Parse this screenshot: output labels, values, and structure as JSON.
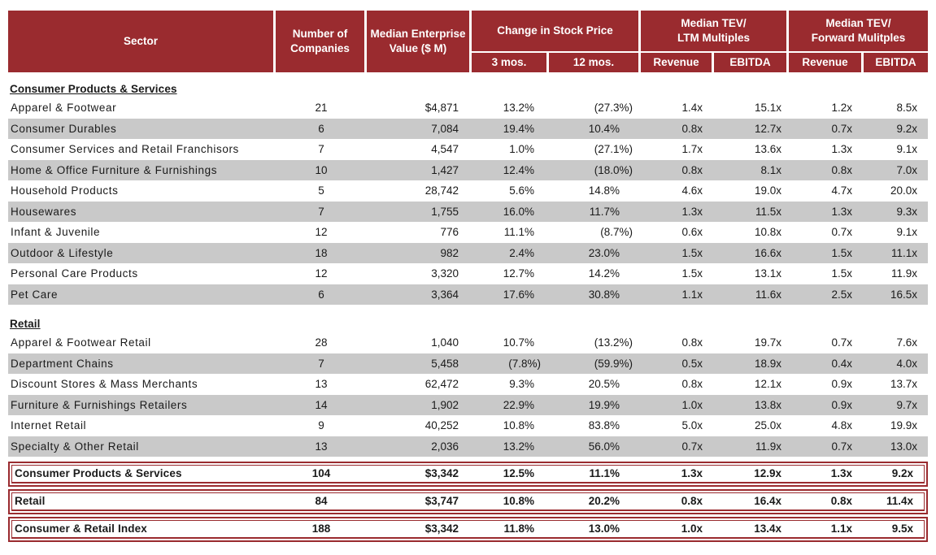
{
  "colors": {
    "header_bg": "#9A2B2F",
    "header_text": "#FFFFFF",
    "stripe": "#C9C9C9",
    "box_border": "#9A2B2F",
    "text": "#1A1A1A"
  },
  "chart_data": {
    "type": "table",
    "header": {
      "sector": "Sector",
      "companies": "Number of\nCompanies",
      "ev": "Median Enterprise\nValue ($ M)",
      "groups": [
        {
          "label": "Change in Stock Price",
          "sub": [
            "3 mos.",
            "12 mos."
          ]
        },
        {
          "label": "Median TEV/\nLTM Multiples",
          "sub": [
            "Revenue",
            "EBITDA"
          ]
        },
        {
          "label": "Median TEV/\nForward Mulitples",
          "sub": [
            "Revenue",
            "EBITDA"
          ]
        }
      ]
    },
    "sections": [
      {
        "title": "Consumer Products & Services",
        "rows": [
          [
            "Apparel & Footwear",
            "21",
            "$4,871",
            "13.2%",
            "(27.3%)",
            "1.4x",
            "15.1x",
            "1.2x",
            "8.5x"
          ],
          [
            "Consumer Durables",
            "6",
            "7,084",
            "19.4%",
            "10.4%",
            "0.8x",
            "12.7x",
            "0.7x",
            "9.2x"
          ],
          [
            "Consumer Services and Retail Franchisors",
            "7",
            "4,547",
            "1.0%",
            "(27.1%)",
            "1.7x",
            "13.6x",
            "1.3x",
            "9.1x"
          ],
          [
            "Home & Office Furniture & Furnishings",
            "10",
            "1,427",
            "12.4%",
            "(18.0%)",
            "0.8x",
            "8.1x",
            "0.8x",
            "7.0x"
          ],
          [
            "Household Products",
            "5",
            "28,742",
            "5.6%",
            "14.8%",
            "4.6x",
            "19.0x",
            "4.7x",
            "20.0x"
          ],
          [
            "Housewares",
            "7",
            "1,755",
            "16.0%",
            "11.7%",
            "1.3x",
            "11.5x",
            "1.3x",
            "9.3x"
          ],
          [
            "Infant & Juvenile",
            "12",
            "776",
            "11.1%",
            "(8.7%)",
            "0.6x",
            "10.8x",
            "0.7x",
            "9.1x"
          ],
          [
            "Outdoor & Lifestyle",
            "18",
            "982",
            "2.4%",
            "23.0%",
            "1.5x",
            "16.6x",
            "1.5x",
            "11.1x"
          ],
          [
            "Personal Care Products",
            "12",
            "3,320",
            "12.7%",
            "14.2%",
            "1.5x",
            "13.1x",
            "1.5x",
            "11.9x"
          ],
          [
            "Pet Care",
            "6",
            "3,364",
            "17.6%",
            "30.8%",
            "1.1x",
            "11.6x",
            "2.5x",
            "16.5x"
          ]
        ]
      },
      {
        "title": "Retail",
        "rows": [
          [
            "Apparel & Footwear Retail",
            "28",
            "1,040",
            "10.7%",
            "(13.2%)",
            "0.8x",
            "19.7x",
            "0.7x",
            "7.6x"
          ],
          [
            "Department Chains",
            "7",
            "5,458",
            "(7.8%)",
            "(59.9%)",
            "0.5x",
            "18.9x",
            "0.4x",
            "4.0x"
          ],
          [
            "Discount Stores & Mass Merchants",
            "13",
            "62,472",
            "9.3%",
            "20.5%",
            "0.8x",
            "12.1x",
            "0.9x",
            "13.7x"
          ],
          [
            "Furniture & Furnishings Retailers",
            "14",
            "1,902",
            "22.9%",
            "19.9%",
            "1.0x",
            "13.8x",
            "0.9x",
            "9.7x"
          ],
          [
            "Internet Retail",
            "9",
            "40,252",
            "10.8%",
            "83.8%",
            "5.0x",
            "25.0x",
            "4.8x",
            "19.9x"
          ],
          [
            "Specialty & Other Retail",
            "13",
            "2,036",
            "13.2%",
            "56.0%",
            "0.7x",
            "11.9x",
            "0.7x",
            "13.0x"
          ]
        ]
      }
    ],
    "summary_rows": [
      [
        "Consumer Products & Services",
        "104",
        "$3,342",
        "12.5%",
        "11.1%",
        "1.3x",
        "12.9x",
        "1.3x",
        "9.2x"
      ],
      [
        "Retail",
        "84",
        "$3,747",
        "10.8%",
        "20.2%",
        "0.8x",
        "16.4x",
        "0.8x",
        "11.4x"
      ],
      [
        "Consumer & Retail Index",
        "188",
        "$3,342",
        "11.8%",
        "13.0%",
        "1.0x",
        "13.4x",
        "1.1x",
        "9.5x"
      ]
    ]
  }
}
